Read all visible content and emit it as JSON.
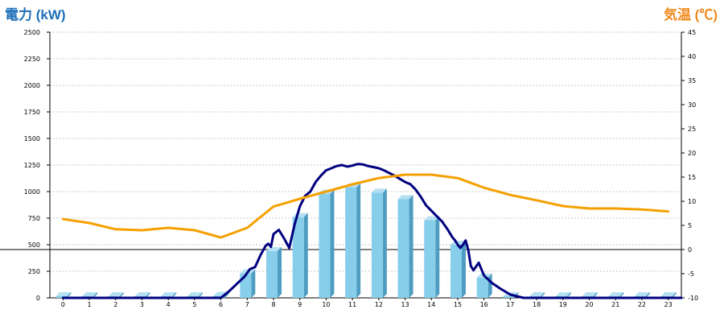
{
  "colors": {
    "bar_front": "#87ceeb",
    "bar_side": "#4f9cc2",
    "bar_top": "#b5e0f2",
    "power_line": "#000080",
    "temp_line": "#f5a000",
    "grid": "#c8c8c8",
    "left_title": "#1e6fb8",
    "right_title": "#f08a1c"
  },
  "chart_data": {
    "type": "bar",
    "title_left": "電力 (kW)",
    "title_right": "気温 (℃)",
    "categories": [
      "0",
      "1",
      "2",
      "3",
      "4",
      "5",
      "6",
      "7",
      "8",
      "9",
      "10",
      "11",
      "12",
      "13",
      "14",
      "15",
      "16",
      "17",
      "18",
      "19",
      "20",
      "21",
      "22",
      "23"
    ],
    "ylim_left": [
      0,
      2500
    ],
    "ylim_right": [
      -10,
      45
    ],
    "yticks_left": [
      0,
      250,
      500,
      750,
      1000,
      1250,
      1500,
      1750,
      2000,
      2250,
      2500
    ],
    "yticks_right": [
      -10,
      -5,
      0,
      5,
      10,
      15,
      20,
      25,
      30,
      35,
      40,
      45
    ],
    "grid": true,
    "series": [
      {
        "kind": "bar",
        "axis": "left",
        "values": [
          0,
          0,
          0,
          0,
          0,
          0,
          20,
          230,
          440,
          760,
          980,
          1040,
          990,
          930,
          730,
          500,
          190,
          0,
          0,
          0,
          0,
          0,
          0,
          0
        ]
      },
      {
        "kind": "line",
        "axis": "left",
        "x": [
          0,
          6,
          6.3,
          6.6,
          6.9,
          7.1,
          7.3,
          7.5,
          7.7,
          7.8,
          7.9,
          8.0,
          8.2,
          8.4,
          8.6,
          8.8,
          9.0,
          9.2,
          9.4,
          9.6,
          9.8,
          10.0,
          10.2,
          10.4,
          10.6,
          10.8,
          11.0,
          11.2,
          11.4,
          11.6,
          11.8,
          12.0,
          12.2,
          12.4,
          12.6,
          12.8,
          13.0,
          13.2,
          13.4,
          13.6,
          13.8,
          14.0,
          14.2,
          14.4,
          14.6,
          14.8,
          14.9,
          15.0,
          15.1,
          15.2,
          15.3,
          15.4,
          15.5,
          15.6,
          15.8,
          16.0,
          16.3,
          16.6,
          17.0,
          17.5,
          23.5
        ],
        "values": [
          0,
          0,
          60,
          130,
          200,
          270,
          290,
          400,
          490,
          510,
          480,
          600,
          640,
          560,
          470,
          690,
          860,
          960,
          1000,
          1090,
          1150,
          1200,
          1220,
          1240,
          1250,
          1235,
          1245,
          1260,
          1255,
          1240,
          1230,
          1220,
          1200,
          1175,
          1150,
          1120,
          1090,
          1070,
          1020,
          950,
          870,
          820,
          770,
          720,
          650,
          570,
          540,
          500,
          470,
          500,
          540,
          450,
          300,
          260,
          330,
          210,
          140,
          90,
          30,
          0,
          0
        ]
      },
      {
        "kind": "line",
        "axis": "right",
        "x": [
          0,
          1,
          2,
          3,
          4,
          5,
          6,
          7,
          8,
          9,
          10,
          11,
          12,
          13,
          14,
          15,
          16,
          17,
          18,
          19,
          20,
          21,
          22,
          23
        ],
        "values": [
          6.3,
          5.5,
          4.2,
          4.0,
          4.5,
          4.0,
          2.5,
          4.5,
          8.9,
          10.5,
          12.0,
          13.5,
          14.8,
          15.5,
          15.5,
          14.8,
          12.8,
          11.3,
          10.2,
          9.0,
          8.5,
          8.5,
          8.3,
          7.9
        ]
      }
    ]
  }
}
